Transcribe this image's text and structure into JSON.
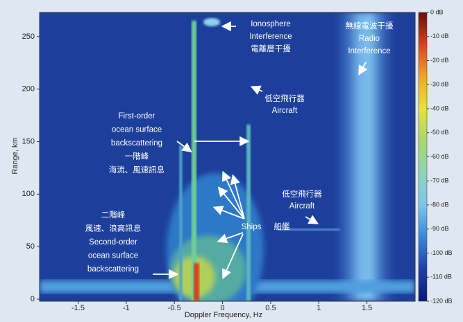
{
  "chart_data": {
    "type": "heatmap",
    "xlabel": "Doppler Frequency, Hz",
    "ylabel": "Range, km",
    "xlim": [
      -1.9,
      2.0
    ],
    "xticks": [
      -1.5,
      -1,
      -0.5,
      0,
      0.5,
      1,
      1.5
    ],
    "ylim": [
      -2,
      273
    ],
    "yticks": [
      0,
      50,
      100,
      150,
      200,
      250
    ],
    "colorbar": {
      "lim": [
        -120,
        0
      ],
      "colors": [
        "#0b1a6e",
        "#1f3fae",
        "#3d86d6",
        "#7cc6ea",
        "#8fd3b8",
        "#a9d86a",
        "#e6e23c",
        "#f2a52a",
        "#d9411e",
        "#6b0d0d"
      ],
      "ticks": [
        {
          "value": 0,
          "label": "0 dB"
        },
        {
          "value": -10,
          "label": "-10 dB"
        },
        {
          "value": -20,
          "label": "-20 dB"
        },
        {
          "value": -30,
          "label": "-30 dB"
        },
        {
          "value": -40,
          "label": "-40 dB"
        },
        {
          "value": -50,
          "label": "-50 dB"
        },
        {
          "value": -60,
          "label": "-60 dB"
        },
        {
          "value": -70,
          "label": "-70 dB"
        },
        {
          "value": -80,
          "label": "-80 dB"
        },
        {
          "value": -90,
          "label": "-90 dB"
        },
        {
          "value": -100,
          "label": "-100 dB"
        },
        {
          "value": -110,
          "label": "-110 dB"
        },
        {
          "value": -120,
          "label": "-120 dB"
        }
      ]
    },
    "annotations": [
      [
        "Ionosphere",
        "Interference",
        "電離層干擾"
      ],
      [
        "無線電波干擾",
        "Radio",
        "Interference"
      ],
      [
        "低空飛行器",
        "Aircraft"
      ],
      [
        "First-order",
        "ocean surface",
        "backscattering",
        "一階峰",
        "海流、風速訊息"
      ],
      [
        "低空飛行器",
        "Aircraft"
      ],
      [
        "Ships"
      ],
      [
        "船艦"
      ],
      [
        "二階峰",
        "風速、浪高訊息",
        "Second-order",
        "ocean surface",
        "backscattering"
      ]
    ]
  }
}
